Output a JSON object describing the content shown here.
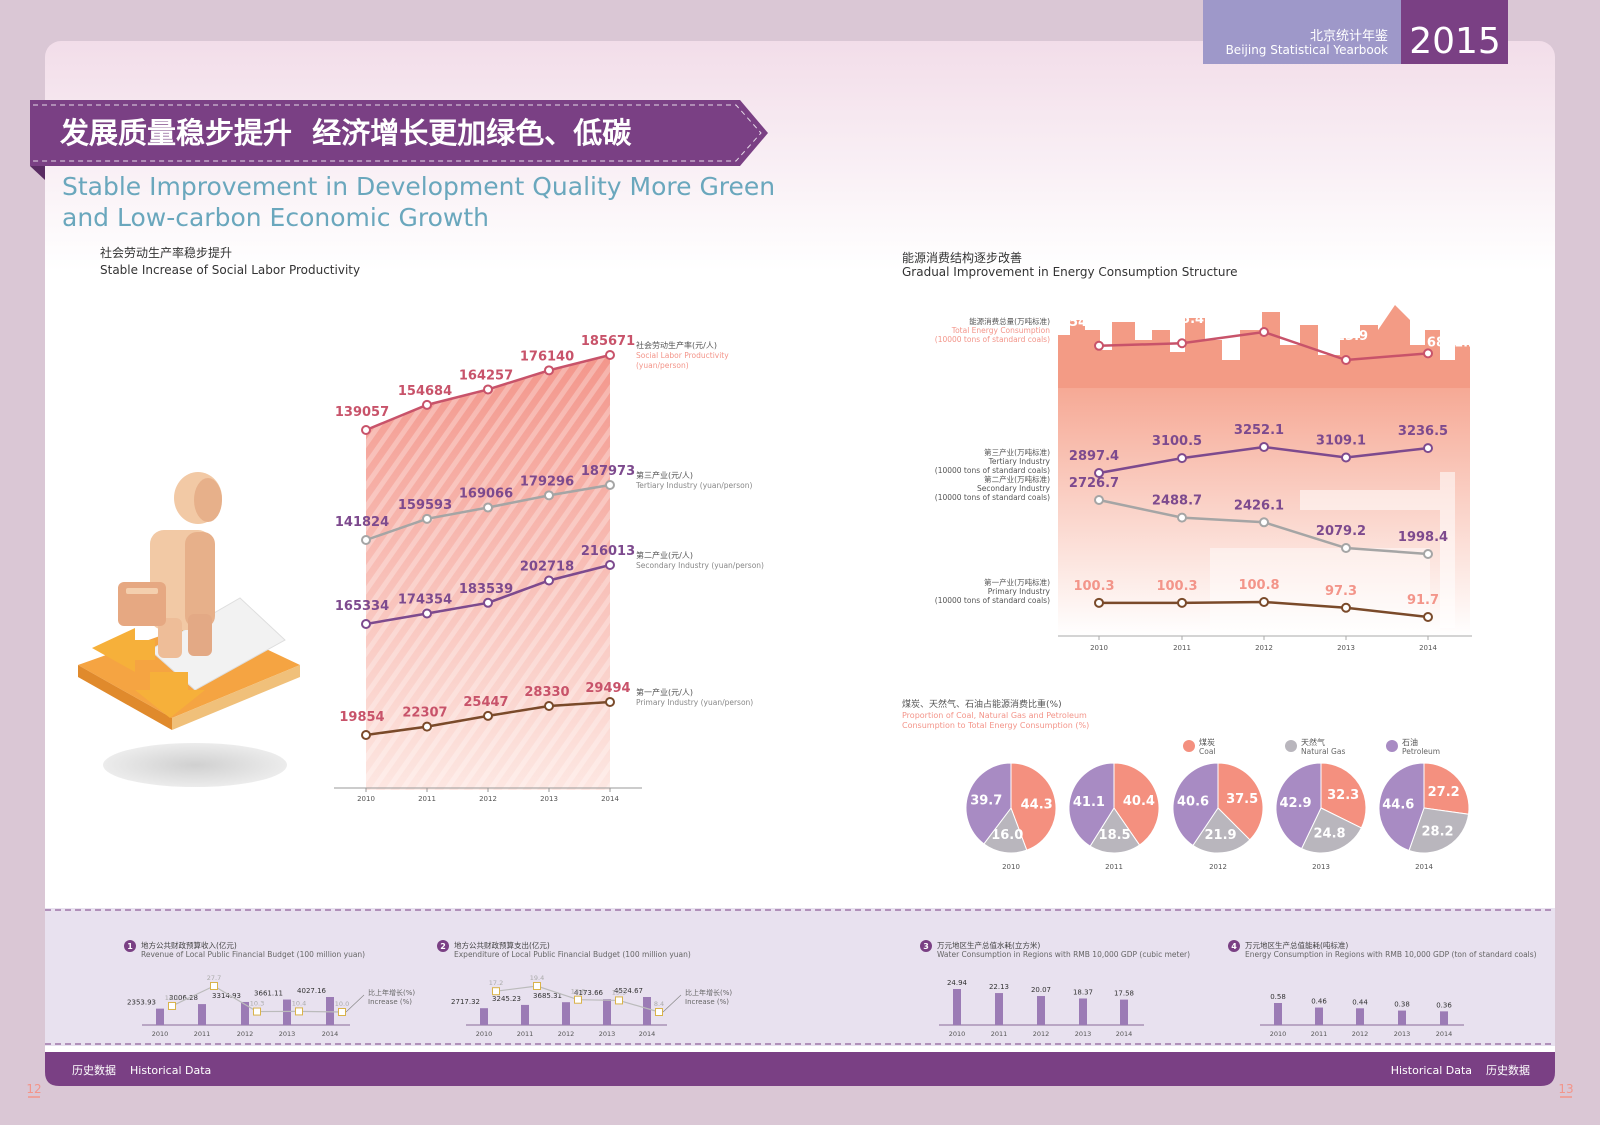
{
  "header": {
    "yearbook_cn": "北京统计年鉴",
    "yearbook_en": "Beijing Statistical Yearbook",
    "year": "2015"
  },
  "banner": {
    "title_cn": "发展质量稳步提升  经济增长更加绿色、低碳",
    "title_en_line1": "Stable Improvement in Development Quality More Green",
    "title_en_line2": "and Low-carbon Economic Growth"
  },
  "footer": {
    "left_text": "历史数据    Historical Data",
    "right_text": "Historical Data    历史数据",
    "page_left": "12",
    "page_right": "13"
  },
  "colors": {
    "purple_dark": "#7a4084",
    "purple_light": "#9e98c9",
    "salmon": "#f3958a",
    "red_line": "#c8536a",
    "gray_line": "#a5a5a5",
    "purple_line": "#7d4a8e",
    "brown_line": "#7a4a2a",
    "coal": "#f4907f",
    "natural_gas": "#b9b6bd",
    "petroleum": "#a88bc3"
  },
  "chart_data": [
    {
      "id": "labor",
      "type": "line",
      "title": "社会劳动生产率稳步提升",
      "subtitle": "Stable Increase of Social Labor Productivity",
      "x": [
        "2010",
        "2011",
        "2012",
        "2013",
        "2014"
      ],
      "series": [
        {
          "key": "total",
          "name": "社会劳动生产率(元/人)",
          "name_en1": "Social Labor Productivity",
          "name_en2": "(yuan/person)",
          "values": [
            139057,
            154684,
            164257,
            176140,
            185671
          ]
        },
        {
          "key": "tertiary",
          "name": "第三产业(元/人)",
          "name_en1": "Tertiary Industry (yuan/person)",
          "name_en2": "",
          "values": [
            141824,
            159593,
            169066,
            179296,
            187973
          ]
        },
        {
          "key": "secondary",
          "name": "第二产业(元/人)",
          "name_en1": "Secondary Industry (yuan/person)",
          "name_en2": "",
          "values": [
            165334,
            174354,
            183539,
            202718,
            216013
          ]
        },
        {
          "key": "primary",
          "name": "第一产业(元/人)",
          "name_en1": "Primary Industry (yuan/person)",
          "name_en2": "",
          "values": [
            19854,
            22307,
            25447,
            28330,
            29494
          ]
        }
      ]
    },
    {
      "id": "energy",
      "type": "line",
      "title": "能源消费结构逐步改善",
      "subtitle": "Gradual Improvement in Energy Consumption Structure",
      "x": [
        "2010",
        "2011",
        "2012",
        "2013",
        "2014"
      ],
      "series": [
        {
          "key": "total",
          "name": "能源消费总量(万吨标准)",
          "name_en1": "Total Energy Consumption",
          "name_en2": "(10000 tons of standard coals)",
          "values": [
            6954.1,
            6995.4,
            7177.7,
            6723.9,
            6831.2
          ]
        },
        {
          "key": "tertiary",
          "name": "第三产业(万吨标准)",
          "name_en1": "Tertiary Industry",
          "name_en2": "(10000 tons of standard coals)",
          "values": [
            2897.4,
            3100.5,
            3252.1,
            3109.1,
            3236.5
          ]
        },
        {
          "key": "secondary",
          "name": "第二产业(万吨标准)",
          "name_en1": "Secondary Industry",
          "name_en2": "(10000 tons of standard coals)",
          "values": [
            2726.7,
            2488.7,
            2426.1,
            2079.2,
            1998.4
          ]
        },
        {
          "key": "primary",
          "name": "第一产业(万吨标准)",
          "name_en1": "Primary Industry",
          "name_en2": "(10000 tons of standard coals)",
          "values": [
            100.3,
            100.3,
            100.8,
            97.3,
            91.7
          ]
        }
      ]
    },
    {
      "id": "energy_mix",
      "type": "pie",
      "title": "煤炭、天然气、石油占能源消费比重(%)",
      "subtitle_line1": "Proportion of Coal, Natural Gas and Petroleum",
      "subtitle_line2": "Consumption to Total Energy Consumption (%)",
      "legend": [
        {
          "key": "coal",
          "cn": "煤炭",
          "en": "Coal"
        },
        {
          "key": "gas",
          "cn": "天然气",
          "en": "Natural Gas"
        },
        {
          "key": "petroleum",
          "cn": "石油",
          "en": "Petroleum"
        }
      ],
      "pies": [
        {
          "year": "2010",
          "coal": 44.3,
          "gas": 16.0,
          "petroleum": 39.7,
          "coal_label": "44.3",
          "gas_label": "16.0",
          "petroleum_label": "39.7"
        },
        {
          "year": "2011",
          "coal": 40.4,
          "gas": 18.5,
          "petroleum": 41.1,
          "coal_label": "40.4",
          "gas_label": "18.5",
          "petroleum_label": "41.1"
        },
        {
          "year": "2012",
          "coal": 37.5,
          "gas": 21.9,
          "petroleum": 40.6,
          "coal_label": "37.5",
          "gas_label": "21.9",
          "petroleum_label": "40.6"
        },
        {
          "year": "2013",
          "coal": 32.3,
          "gas": 24.8,
          "petroleum": 42.9,
          "coal_label": "32.3",
          "gas_label": "24.8",
          "petroleum_label": "42.9"
        },
        {
          "year": "2014",
          "coal": 27.2,
          "gas": 28.2,
          "petroleum": 44.6,
          "coal_label": "27.2",
          "gas_label": "28.2",
          "petroleum_label": "44.6"
        }
      ]
    },
    {
      "id": "revenue",
      "type": "bar",
      "number": "1",
      "title": "地方公共财政预算收入(亿元)",
      "subtitle": "Revenue of Local Public Financial Budget (100 million yuan)",
      "categories": [
        "2010",
        "2011",
        "2012",
        "2013",
        "2014"
      ],
      "values": [
        2353.93,
        3006.28,
        3314.93,
        3661.11,
        4027.16
      ],
      "labels": [
        "2353.93",
        "3006.28",
        "3314.93",
        "3661.11",
        "4027.16"
      ],
      "growth": [
        14.1,
        27.7,
        10.3,
        10.4,
        10.0
      ],
      "growth_labels": [
        "14.1",
        "27.7",
        "10.3",
        "10.4",
        "10.0"
      ],
      "growth_name": "比上年增长(%)",
      "growth_name_en": "Increase (%)"
    },
    {
      "id": "expenditure",
      "type": "bar",
      "number": "2",
      "title": "地方公共财政预算支出(亿元)",
      "subtitle": "Expenditure of Local Public Financial Budget (100 million yuan)",
      "categories": [
        "2010",
        "2011",
        "2012",
        "2013",
        "2014"
      ],
      "values": [
        2717.32,
        3245.23,
        3685.31,
        4173.66,
        4524.67
      ],
      "labels": [
        "2717.32",
        "3245.23",
        "3685.31",
        "4173.66",
        "4524.67"
      ],
      "growth": [
        17.2,
        19.4,
        13.6,
        13.3,
        8.4
      ],
      "growth_labels": [
        "17.2",
        "19.4",
        "13.6",
        "13.3",
        "8.4"
      ],
      "growth_name": "比上年增长(%)",
      "growth_name_en": "Increase (%)"
    },
    {
      "id": "water",
      "type": "bar",
      "number": "3",
      "title": "万元地区生产总值水耗(立方米)",
      "subtitle": "Water Consumption in Regions with RMB 10,000 GDP (cubic meter)",
      "categories": [
        "2010",
        "2011",
        "2012",
        "2013",
        "2014"
      ],
      "values": [
        24.94,
        22.13,
        20.07,
        18.37,
        17.58
      ],
      "labels": [
        "24.94",
        "22.13",
        "20.07",
        "18.37",
        "17.58"
      ]
    },
    {
      "id": "energy_gdp",
      "type": "bar",
      "number": "4",
      "title": "万元地区生产总值能耗(吨标准)",
      "subtitle": "Energy Consumption in Regions with RMB 10,000 GDP (ton of standard coals)",
      "categories": [
        "2010",
        "2011",
        "2012",
        "2013",
        "2014"
      ],
      "values": [
        0.58,
        0.46,
        0.44,
        0.38,
        0.36
      ],
      "labels": [
        "0.58",
        "0.46",
        "0.44",
        "0.38",
        "0.36"
      ]
    }
  ]
}
